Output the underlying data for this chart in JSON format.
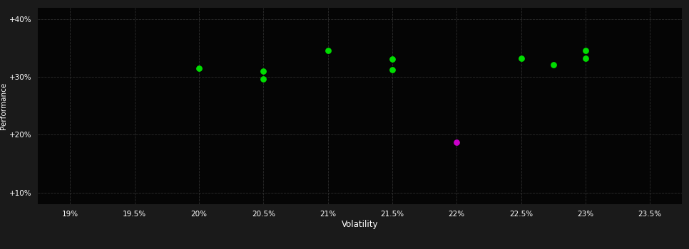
{
  "background_color": "#1a1a1a",
  "plot_bg_color": "#050505",
  "text_color": "#ffffff",
  "green_color": "#00dd00",
  "magenta_color": "#cc00cc",
  "green_points": [
    [
      20.0,
      31.5
    ],
    [
      20.5,
      31.0
    ],
    [
      20.5,
      29.6
    ],
    [
      21.0,
      34.6
    ],
    [
      21.5,
      33.1
    ],
    [
      21.5,
      31.2
    ],
    [
      22.5,
      33.2
    ],
    [
      22.75,
      32.1
    ],
    [
      23.0,
      34.5
    ],
    [
      23.0,
      33.2
    ]
  ],
  "magenta_points": [
    [
      22.0,
      18.7
    ]
  ],
  "xlim": [
    18.75,
    23.75
  ],
  "ylim": [
    8.0,
    42.0
  ],
  "xticks": [
    19.0,
    19.5,
    20.0,
    20.5,
    21.0,
    21.5,
    22.0,
    22.5,
    23.0,
    23.5
  ],
  "yticks": [
    10,
    20,
    30,
    40
  ],
  "xlabel": "Volatility",
  "ylabel": "Performance",
  "marker_size": 28
}
